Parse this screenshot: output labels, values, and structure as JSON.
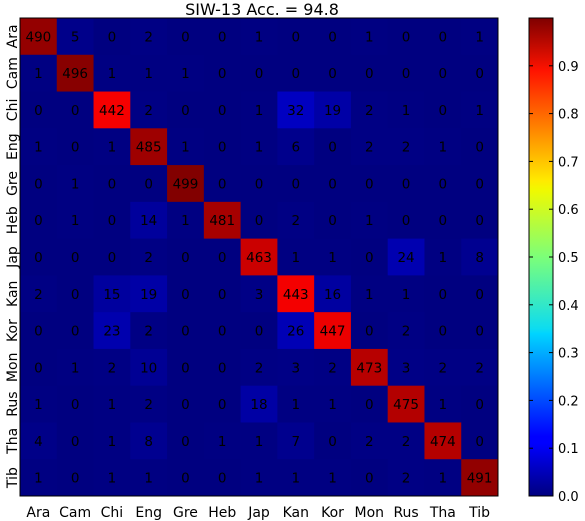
{
  "chart_data": {
    "type": "heatmap",
    "title": "SIW-13 Acc. = 94.8",
    "xlabel": "",
    "ylabel": "",
    "row_labels": [
      "Ara",
      "Cam",
      "Chi",
      "Eng",
      "Gre",
      "Heb",
      "Jap",
      "Kan",
      "Kor",
      "Mon",
      "Rus",
      "Tha",
      "Tib"
    ],
    "col_labels": [
      "Ara",
      "Cam",
      "Chi",
      "Eng",
      "Gre",
      "Heb",
      "Jap",
      "Kan",
      "Kor",
      "Mon",
      "Rus",
      "Tha",
      "Tib"
    ],
    "matrix": [
      [
        490,
        5,
        0,
        2,
        0,
        0,
        1,
        0,
        0,
        1,
        0,
        0,
        1
      ],
      [
        1,
        496,
        1,
        1,
        1,
        0,
        0,
        0,
        0,
        0,
        0,
        0,
        0
      ],
      [
        0,
        0,
        442,
        2,
        0,
        0,
        1,
        32,
        19,
        2,
        1,
        0,
        1
      ],
      [
        1,
        0,
        1,
        485,
        1,
        0,
        1,
        6,
        0,
        2,
        2,
        1,
        0
      ],
      [
        0,
        1,
        0,
        0,
        499,
        0,
        0,
        0,
        0,
        0,
        0,
        0,
        0
      ],
      [
        0,
        1,
        0,
        14,
        1,
        481,
        0,
        2,
        0,
        1,
        0,
        0,
        0
      ],
      [
        0,
        0,
        0,
        2,
        0,
        0,
        463,
        1,
        1,
        0,
        24,
        1,
        8
      ],
      [
        2,
        0,
        15,
        19,
        0,
        0,
        3,
        443,
        16,
        1,
        1,
        0,
        0
      ],
      [
        0,
        0,
        23,
        2,
        0,
        0,
        0,
        26,
        447,
        0,
        2,
        0,
        0
      ],
      [
        0,
        1,
        2,
        10,
        0,
        0,
        2,
        3,
        2,
        473,
        3,
        2,
        2
      ],
      [
        1,
        0,
        1,
        2,
        0,
        0,
        18,
        1,
        1,
        0,
        475,
        1,
        0
      ],
      [
        4,
        0,
        1,
        8,
        0,
        1,
        1,
        7,
        0,
        2,
        2,
        474,
        0
      ],
      [
        1,
        0,
        1,
        1,
        0,
        0,
        1,
        1,
        1,
        0,
        2,
        1,
        491
      ]
    ],
    "colorbar": {
      "range": [
        0.0,
        1.0
      ],
      "ticks": [
        "0.0",
        "0.1",
        "0.2",
        "0.3",
        "0.4",
        "0.5",
        "0.6",
        "0.7",
        "0.8",
        "0.9"
      ],
      "colormap": "jet"
    }
  }
}
